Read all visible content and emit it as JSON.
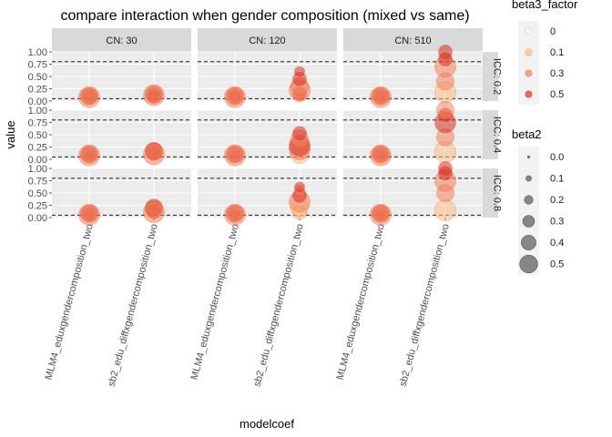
{
  "chart_data": {
    "type": "scatter",
    "title": "compare interaction when gender composition (mixed vs same)",
    "xlabel": "modelcoef",
    "ylabel": "value",
    "ylim": [
      0,
      1
    ],
    "yticks": [
      "0.00",
      "0.25",
      "0.50",
      "0.75",
      "1.00"
    ],
    "grid": true,
    "legend_position": "right",
    "x_categories": [
      "MLM4_eduxgendercomposition_two",
      "sb2_edu_diffxgendercomposition_two"
    ],
    "col_facets": [
      "CN: 30",
      "CN: 120",
      "CN: 510"
    ],
    "row_facets": [
      "ICC: 0.2",
      "ICC: 0.4",
      "ICC: 0.8"
    ],
    "reference_lines": [
      0.05,
      0.8
    ],
    "colors": {
      "panel_bg": "#ebebeb",
      "strip_bg": "#d9d9d9",
      "beta3_0": "#fff5eb",
      "beta3_0.1": "#fdbe85",
      "beta3_0.3": "#f4805c",
      "beta3_0.5": "#d7301f",
      "beta2_point": "#595959"
    },
    "legends": [
      {
        "title": "beta3_factor",
        "kind": "color",
        "labels": [
          "0",
          "0.1",
          "0.3",
          "0.5"
        ]
      },
      {
        "title": "beta2",
        "kind": "size",
        "labels": [
          "0.0",
          "0.1",
          "0.2",
          "0.3",
          "0.4",
          "0.5"
        ]
      }
    ],
    "series": [
      {
        "col": "CN: 30",
        "row": "ICC: 0.2",
        "x": "MLM4_eduxgendercomposition_two",
        "points": [
          [
            0.1,
            0.08,
            0.0
          ],
          [
            0.5,
            0.09,
            0.2
          ],
          [
            0.1,
            0.09,
            0.3
          ],
          [
            0.5,
            0.1,
            0.4
          ],
          [
            0.3,
            0.08,
            0.5
          ]
        ]
      },
      {
        "col": "CN: 30",
        "row": "ICC: 0.2",
        "x": "sb2_edu_diffxgendercomposition_two",
        "points": [
          [
            0.5,
            0.1,
            0.2
          ],
          [
            0.3,
            0.11,
            0.3
          ],
          [
            0.5,
            0.13,
            0.4
          ],
          [
            0.3,
            0.12,
            0.5
          ]
        ]
      },
      {
        "col": "CN: 120",
        "row": "ICC: 0.2",
        "x": "MLM4_eduxgendercomposition_two",
        "points": [
          [
            0.1,
            0.08,
            0.0
          ],
          [
            0.5,
            0.09,
            0.2
          ],
          [
            0.1,
            0.09,
            0.3
          ],
          [
            0.5,
            0.1,
            0.4
          ],
          [
            0.3,
            0.08,
            0.5
          ]
        ]
      },
      {
        "col": "CN: 120",
        "row": "ICC: 0.2",
        "x": "sb2_edu_diffxgendercomposition_two",
        "points": [
          [
            0.1,
            0.08,
            0.2
          ],
          [
            0.5,
            0.15,
            0.3
          ],
          [
            0.3,
            0.22,
            0.5
          ],
          [
            0.3,
            0.3,
            0.4
          ],
          [
            0.5,
            0.45,
            0.3
          ],
          [
            0.5,
            0.6,
            0.2
          ]
        ]
      },
      {
        "col": "CN: 510",
        "row": "ICC: 0.2",
        "x": "MLM4_eduxgendercomposition_two",
        "points": [
          [
            0.1,
            0.08,
            0.0
          ],
          [
            0.5,
            0.09,
            0.2
          ],
          [
            0.1,
            0.09,
            0.3
          ],
          [
            0.5,
            0.1,
            0.4
          ],
          [
            0.3,
            0.08,
            0.5
          ]
        ]
      },
      {
        "col": "CN: 510",
        "row": "ICC: 0.2",
        "x": "sb2_edu_diffxgendercomposition_two",
        "points": [
          [
            0.1,
            0.18,
            0.5
          ],
          [
            0.3,
            0.4,
            0.4
          ],
          [
            0.3,
            0.7,
            0.5
          ],
          [
            0.5,
            0.85,
            0.3
          ],
          [
            0.5,
            1.0,
            0.3
          ]
        ]
      },
      {
        "col": "CN: 30",
        "row": "ICC: 0.4",
        "x": "MLM4_eduxgendercomposition_two",
        "points": [
          [
            0.1,
            0.07,
            0.0
          ],
          [
            0.5,
            0.08,
            0.2
          ],
          [
            0.1,
            0.09,
            0.3
          ],
          [
            0.5,
            0.1,
            0.4
          ],
          [
            0.3,
            0.08,
            0.5
          ]
        ]
      },
      {
        "col": "CN: 30",
        "row": "ICC: 0.4",
        "x": "sb2_edu_diffxgendercomposition_two",
        "points": [
          [
            0.1,
            0.09,
            0.2
          ],
          [
            0.5,
            0.12,
            0.3
          ],
          [
            0.3,
            0.15,
            0.4
          ],
          [
            0.5,
            0.17,
            0.4
          ],
          [
            0.3,
            0.1,
            0.5
          ]
        ]
      },
      {
        "col": "CN: 120",
        "row": "ICC: 0.4",
        "x": "MLM4_eduxgendercomposition_two",
        "points": [
          [
            0.1,
            0.07,
            0.0
          ],
          [
            0.5,
            0.08,
            0.2
          ],
          [
            0.1,
            0.09,
            0.3
          ],
          [
            0.5,
            0.1,
            0.4
          ],
          [
            0.3,
            0.08,
            0.5
          ]
        ]
      },
      {
        "col": "CN: 120",
        "row": "ICC: 0.4",
        "x": "sb2_edu_diffxgendercomposition_two",
        "points": [
          [
            0.1,
            0.09,
            0.4
          ],
          [
            0.3,
            0.2,
            0.5
          ],
          [
            0.5,
            0.28,
            0.5
          ],
          [
            0.3,
            0.42,
            0.4
          ],
          [
            0.5,
            0.53,
            0.3
          ]
        ]
      },
      {
        "col": "CN: 510",
        "row": "ICC: 0.4",
        "x": "MLM4_eduxgendercomposition_two",
        "points": [
          [
            0.1,
            0.07,
            0.0
          ],
          [
            0.5,
            0.08,
            0.2
          ],
          [
            0.1,
            0.09,
            0.3
          ],
          [
            0.5,
            0.1,
            0.4
          ],
          [
            0.3,
            0.08,
            0.5
          ]
        ]
      },
      {
        "col": "CN: 510",
        "row": "ICC: 0.4",
        "x": "sb2_edu_diffxgendercomposition_two",
        "points": [
          [
            0.1,
            0.15,
            0.5
          ],
          [
            0.3,
            0.45,
            0.4
          ],
          [
            0.5,
            0.75,
            0.5
          ],
          [
            0.5,
            0.9,
            0.3
          ],
          [
            0.3,
            1.0,
            0.4
          ]
        ]
      },
      {
        "col": "CN: 30",
        "row": "ICC: 0.8",
        "x": "MLM4_eduxgendercomposition_two",
        "points": [
          [
            0.1,
            0.05,
            0.0
          ],
          [
            0.5,
            0.06,
            0.2
          ],
          [
            0.1,
            0.07,
            0.3
          ],
          [
            0.5,
            0.08,
            0.4
          ],
          [
            0.3,
            0.06,
            0.5
          ]
        ]
      },
      {
        "col": "CN: 30",
        "row": "ICC: 0.8",
        "x": "sb2_edu_diffxgendercomposition_two",
        "points": [
          [
            0.1,
            0.09,
            0.2
          ],
          [
            0.5,
            0.12,
            0.3
          ],
          [
            0.3,
            0.16,
            0.4
          ],
          [
            0.5,
            0.2,
            0.4
          ],
          [
            0.3,
            0.11,
            0.5
          ]
        ]
      },
      {
        "col": "CN: 120",
        "row": "ICC: 0.8",
        "x": "MLM4_eduxgendercomposition_two",
        "points": [
          [
            0.1,
            0.05,
            0.0
          ],
          [
            0.5,
            0.06,
            0.2
          ],
          [
            0.1,
            0.07,
            0.3
          ],
          [
            0.5,
            0.08,
            0.4
          ],
          [
            0.3,
            0.06,
            0.5
          ]
        ]
      },
      {
        "col": "CN: 120",
        "row": "ICC: 0.8",
        "x": "sb2_edu_diffxgendercomposition_two",
        "points": [
          [
            0.1,
            0.1,
            0.3
          ],
          [
            0.1,
            0.2,
            0.4
          ],
          [
            0.3,
            0.32,
            0.5
          ],
          [
            0.5,
            0.45,
            0.3
          ],
          [
            0.3,
            0.55,
            0.2
          ],
          [
            0.5,
            0.62,
            0.2
          ]
        ]
      },
      {
        "col": "CN: 510",
        "row": "ICC: 0.8",
        "x": "MLM4_eduxgendercomposition_two",
        "points": [
          [
            0.1,
            0.05,
            0.0
          ],
          [
            0.5,
            0.06,
            0.2
          ],
          [
            0.1,
            0.07,
            0.3
          ],
          [
            0.5,
            0.08,
            0.4
          ],
          [
            0.3,
            0.06,
            0.5
          ]
        ]
      },
      {
        "col": "CN: 510",
        "row": "ICC: 0.8",
        "x": "sb2_edu_diffxgendercomposition_two",
        "points": [
          [
            0.1,
            0.15,
            0.5
          ],
          [
            0.3,
            0.5,
            0.4
          ],
          [
            0.3,
            0.75,
            0.5
          ],
          [
            0.5,
            0.9,
            0.3
          ],
          [
            0.5,
            1.0,
            0.3
          ]
        ]
      }
    ]
  }
}
